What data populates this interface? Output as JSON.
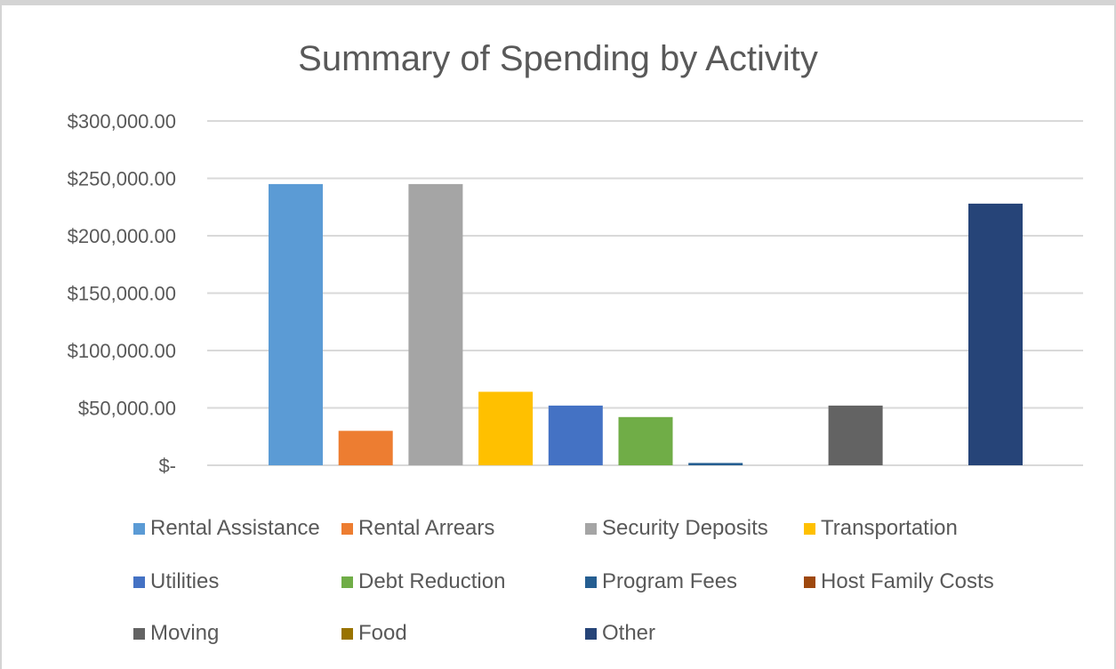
{
  "chart_data": {
    "type": "bar",
    "title": "Summary of Spending by Activity",
    "xlabel": "",
    "ylabel": "",
    "ylim": [
      0,
      300000
    ],
    "yticks": [
      0,
      50000,
      100000,
      150000,
      200000,
      250000,
      300000
    ],
    "ytick_labels": [
      "$-",
      "$50,000.00",
      "$100,000.00",
      "$150,000.00",
      "$200,000.00",
      "$250,000.00",
      "$300,000.00"
    ],
    "grid": true,
    "legend_position": "bottom",
    "series": [
      {
        "name": "Rental Assistance",
        "value": 245000,
        "color": "#5b9bd5"
      },
      {
        "name": "Rental Arrears",
        "value": 30000,
        "color": "#ed7d31"
      },
      {
        "name": "Security Deposits",
        "value": 245000,
        "color": "#a5a5a5"
      },
      {
        "name": "Transportation",
        "value": 64000,
        "color": "#ffc000"
      },
      {
        "name": "Utilities",
        "value": 52000,
        "color": "#4472c4"
      },
      {
        "name": "Debt Reduction",
        "value": 42000,
        "color": "#70ad47"
      },
      {
        "name": "Program Fees",
        "value": 2000,
        "color": "#255e91"
      },
      {
        "name": "Host Family Costs",
        "value": 0,
        "color": "#9e480e"
      },
      {
        "name": "Moving",
        "value": 52000,
        "color": "#636363"
      },
      {
        "name": "Food",
        "value": 0,
        "color": "#997300"
      },
      {
        "name": "Other",
        "value": 228000,
        "color": "#264478"
      }
    ]
  }
}
